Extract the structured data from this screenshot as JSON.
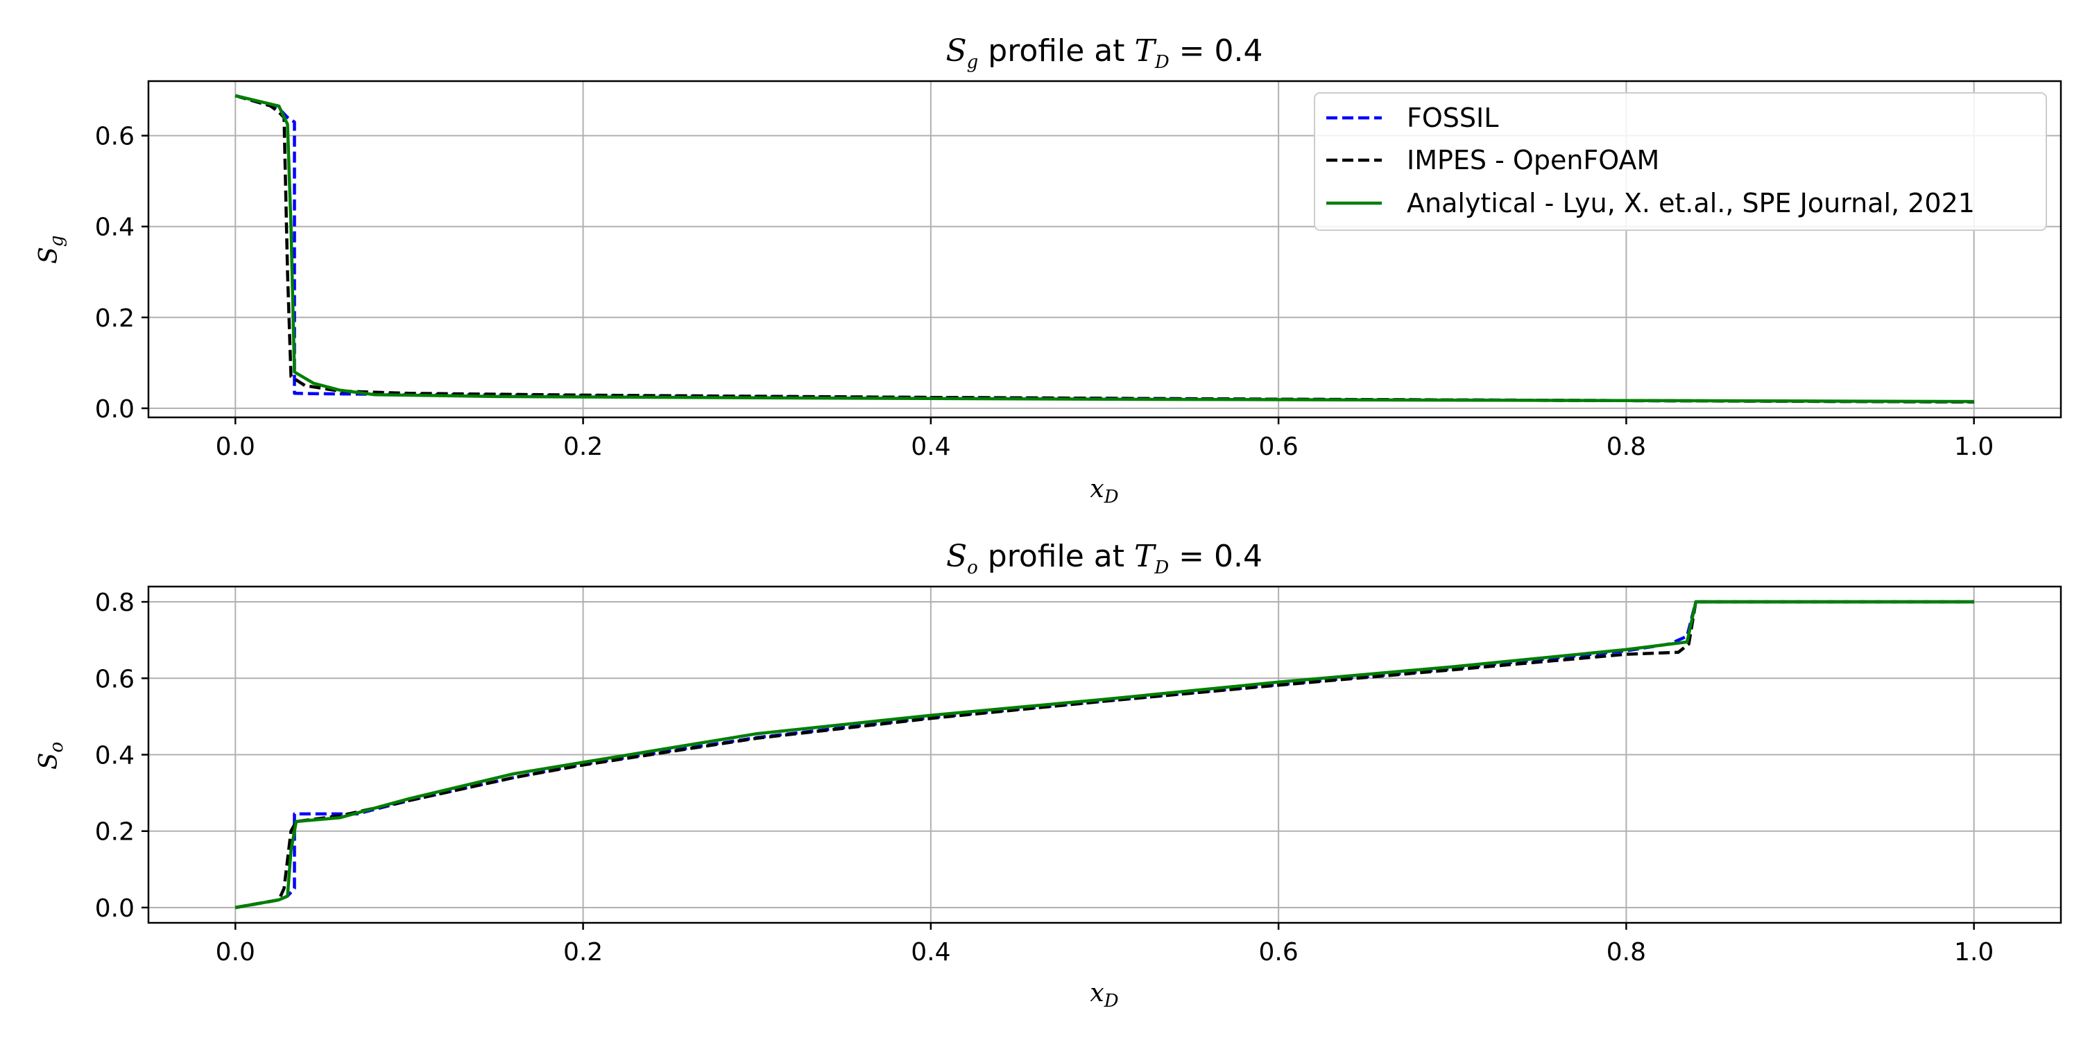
{
  "chart_data": [
    {
      "type": "line",
      "title_var": "S",
      "title_var_sub": "g",
      "title_mid": " profile at ",
      "title_param": "T",
      "title_param_sub": "D",
      "title_tail": " = 0.4",
      "xlabel_var": "x",
      "xlabel_sub": "D",
      "ylabel_var": "S",
      "ylabel_sub": "g",
      "xlim": [
        -0.05,
        1.05
      ],
      "ylim": [
        -0.02,
        0.72
      ],
      "xticks": [
        0.0,
        0.2,
        0.4,
        0.6,
        0.8,
        1.0
      ],
      "xtick_labels": [
        "0.0",
        "0.2",
        "0.4",
        "0.6",
        "0.8",
        "1.0"
      ],
      "yticks": [
        0.0,
        0.2,
        0.4,
        0.6
      ],
      "ytick_labels": [
        "0.0",
        "0.2",
        "0.4",
        "0.6"
      ],
      "grid": true,
      "legend": "top-right",
      "series": [
        {
          "name": "FOSSIL",
          "color": "#0000ff",
          "dash": "dashed",
          "x": [
            0.0,
            0.025,
            0.03,
            0.034,
            0.034,
            0.05,
            0.08,
            0.2,
            0.4,
            0.6,
            0.8,
            1.0
          ],
          "y": [
            0.688,
            0.66,
            0.64,
            0.63,
            0.033,
            0.032,
            0.031,
            0.028,
            0.024,
            0.02,
            0.017,
            0.014
          ]
        },
        {
          "name": "IMPES - OpenFOAM",
          "color": "#000000",
          "dash": "dashed",
          "x": [
            0.0,
            0.02,
            0.025,
            0.028,
            0.03,
            0.032,
            0.04,
            0.06,
            0.1,
            0.2,
            0.4,
            0.6,
            0.8,
            1.0
          ],
          "y": [
            0.688,
            0.666,
            0.652,
            0.64,
            0.3,
            0.07,
            0.05,
            0.038,
            0.033,
            0.029,
            0.024,
            0.02,
            0.017,
            0.014
          ]
        },
        {
          "name": "Analytical - Lyu, X. et.al., SPE Journal, 2021",
          "color": "#007f00",
          "dash": "solid",
          "x": [
            0.0,
            0.025,
            0.03,
            0.032,
            0.034,
            0.045,
            0.06,
            0.08,
            0.15,
            0.3,
            0.5,
            0.7,
            0.9,
            1.0
          ],
          "y": [
            0.688,
            0.665,
            0.625,
            0.4,
            0.08,
            0.055,
            0.04,
            0.03,
            0.026,
            0.023,
            0.02,
            0.018,
            0.016,
            0.015
          ]
        }
      ]
    },
    {
      "type": "line",
      "title_var": "S",
      "title_var_sub": "o",
      "title_mid": " profile at ",
      "title_param": "T",
      "title_param_sub": "D",
      "title_tail": " = 0.4",
      "xlabel_var": "x",
      "xlabel_sub": "D",
      "ylabel_var": "S",
      "ylabel_sub": "o",
      "xlim": [
        -0.05,
        1.05
      ],
      "ylim": [
        -0.04,
        0.84
      ],
      "xticks": [
        0.0,
        0.2,
        0.4,
        0.6,
        0.8,
        1.0
      ],
      "xtick_labels": [
        "0.0",
        "0.2",
        "0.4",
        "0.6",
        "0.8",
        "1.0"
      ],
      "yticks": [
        0.0,
        0.2,
        0.4,
        0.6,
        0.8
      ],
      "ytick_labels": [
        "0.0",
        "0.2",
        "0.4",
        "0.6",
        "0.8"
      ],
      "grid": true,
      "legend": "none",
      "series": [
        {
          "name": "FOSSIL",
          "color": "#0000ff",
          "dash": "dashed",
          "x": [
            0.0,
            0.025,
            0.03,
            0.034,
            0.034,
            0.07,
            0.1,
            0.16,
            0.2,
            0.3,
            0.4,
            0.5,
            0.6,
            0.7,
            0.8,
            0.825,
            0.835,
            0.84,
            0.85,
            1.0
          ],
          "y": [
            0.0,
            0.02,
            0.03,
            0.05,
            0.245,
            0.245,
            0.28,
            0.34,
            0.375,
            0.445,
            0.497,
            0.54,
            0.583,
            0.625,
            0.672,
            0.69,
            0.71,
            0.8,
            0.8,
            0.8
          ]
        },
        {
          "name": "IMPES - OpenFOAM",
          "color": "#000000",
          "dash": "dashed",
          "x": [
            0.0,
            0.025,
            0.028,
            0.032,
            0.035,
            0.06,
            0.1,
            0.16,
            0.2,
            0.3,
            0.4,
            0.5,
            0.6,
            0.7,
            0.8,
            0.83,
            0.836,
            0.84,
            0.85,
            1.0
          ],
          "y": [
            0.0,
            0.02,
            0.05,
            0.2,
            0.225,
            0.24,
            0.28,
            0.34,
            0.373,
            0.443,
            0.495,
            0.54,
            0.582,
            0.622,
            0.663,
            0.668,
            0.69,
            0.8,
            0.8,
            0.8
          ]
        },
        {
          "name": "Analytical - Lyu, X. et.al., SPE Journal, 2021",
          "color": "#007f00",
          "dash": "solid",
          "x": [
            0.0,
            0.025,
            0.03,
            0.032,
            0.035,
            0.06,
            0.1,
            0.16,
            0.2,
            0.3,
            0.4,
            0.5,
            0.6,
            0.7,
            0.8,
            0.835,
            0.84,
            0.85,
            1.0
          ],
          "y": [
            0.0,
            0.02,
            0.03,
            0.15,
            0.225,
            0.235,
            0.285,
            0.35,
            0.38,
            0.455,
            0.503,
            0.545,
            0.59,
            0.63,
            0.675,
            0.695,
            0.8,
            0.8,
            0.8
          ]
        }
      ]
    }
  ]
}
